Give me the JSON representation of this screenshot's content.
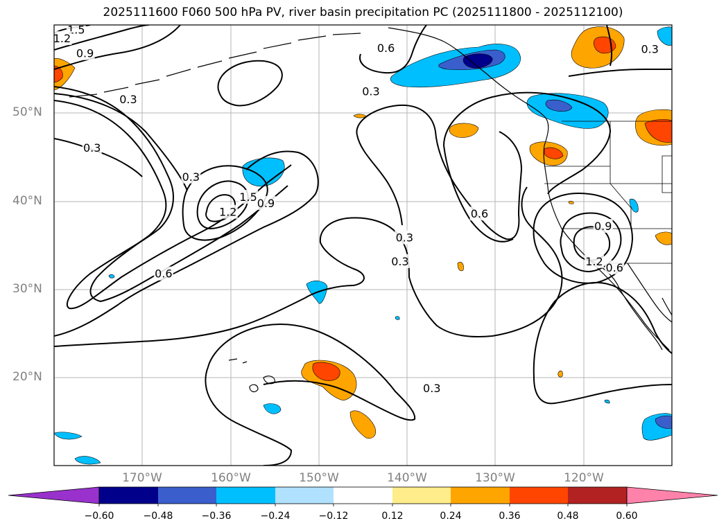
{
  "title": "2025111600 F060 500 hPa PV, river basin precipitation PC (2025111800 - 2025112100)",
  "map": {
    "projection": "equirectangular",
    "lon_range": [
      -180,
      -110
    ],
    "lat_range": [
      10,
      60
    ],
    "gridlines": true,
    "lat_ticks": [
      {
        "lat": 50,
        "label": "50°N"
      },
      {
        "lat": 40,
        "label": "40°N"
      },
      {
        "lat": 30,
        "label": "30°N"
      },
      {
        "lat": 20,
        "label": "20°N"
      }
    ],
    "lon_ticks": [
      {
        "lon": -170,
        "label": "170°W"
      },
      {
        "lon": -160,
        "label": "160°W"
      },
      {
        "lon": -150,
        "label": "150°W"
      },
      {
        "lon": -140,
        "label": "140°W"
      },
      {
        "lon": -130,
        "label": "130°W"
      },
      {
        "lon": -120,
        "label": "120°W"
      }
    ],
    "contour_labels": [
      {
        "text": "1.5",
        "lon": -177.5,
        "lat": 59.5
      },
      {
        "text": "1.2",
        "lon": -179.1,
        "lat": 58.5
      },
      {
        "text": "0.9",
        "lon": -176.5,
        "lat": 56.8
      },
      {
        "text": "0.3",
        "lon": -171.6,
        "lat": 51.6
      },
      {
        "text": "0.3",
        "lon": -175.7,
        "lat": 46.1
      },
      {
        "text": "0.3",
        "lon": -164.5,
        "lat": 42.8
      },
      {
        "text": "1.5",
        "lon": -158.0,
        "lat": 40.5
      },
      {
        "text": "1.2",
        "lon": -160.3,
        "lat": 38.8
      },
      {
        "text": "0.9",
        "lon": -156.0,
        "lat": 39.8
      },
      {
        "text": "0.6",
        "lon": -167.6,
        "lat": 31.8
      },
      {
        "text": "0.6",
        "lon": -142.4,
        "lat": 57.4
      },
      {
        "text": "0.3",
        "lon": -144.1,
        "lat": 52.5
      },
      {
        "text": "0.3",
        "lon": -140.3,
        "lat": 35.9
      },
      {
        "text": "0.3",
        "lon": -140.8,
        "lat": 33.2
      },
      {
        "text": "0.6",
        "lon": -131.8,
        "lat": 38.6
      },
      {
        "text": "0.9",
        "lon": -117.8,
        "lat": 37.2
      },
      {
        "text": "0.6",
        "lon": -116.5,
        "lat": 32.5
      },
      {
        "text": "1.2",
        "lon": -118.8,
        "lat": 33.2
      },
      {
        "text": "0.3",
        "lon": -137.2,
        "lat": 18.8
      },
      {
        "text": "0.3",
        "lon": -112.5,
        "lat": 57.3
      }
    ]
  },
  "colorbar": {
    "ticks": [
      "−0.60",
      "−0.48",
      "−0.36",
      "−0.24",
      "−0.12",
      "0.12",
      "0.24",
      "0.36",
      "0.48",
      "0.60"
    ],
    "colors": [
      "#9932cc",
      "#00008b",
      "#3a5fcd",
      "#00bfff",
      "#b0e2ff",
      "#ffffff",
      "#ffec8b",
      "#ffa500",
      "#ff4500",
      "#b22222",
      "#ff82ab"
    ]
  }
}
